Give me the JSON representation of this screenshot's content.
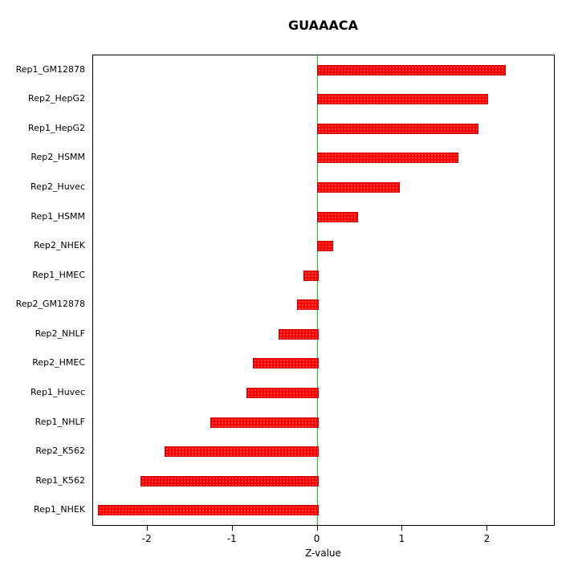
{
  "chart_data": {
    "type": "bar",
    "orientation": "horizontal",
    "title": "GUAAACA",
    "xlabel": "Z-value",
    "ylabel": "",
    "xlim": [
      -2.64,
      2.78
    ],
    "x_ticks": [
      -2,
      -1,
      0,
      1,
      2
    ],
    "grid": false,
    "legend": false,
    "bar_color": "#ff0000",
    "bar_border_color": "#cc0000",
    "zero_line_color": "#00dd00",
    "categories": [
      "Rep1_GM12878",
      "Rep2_HepG2",
      "Rep1_HepG2",
      "Rep2_HSMM",
      "Rep2_Huvec",
      "Rep1_HSMM",
      "Rep2_NHEK",
      "Rep1_HMEC",
      "Rep2_GM12878",
      "Rep2_NHLF",
      "Rep2_HMEC",
      "Rep1_Huvec",
      "Rep1_NHLF",
      "Rep2_K562",
      "Rep1_K562",
      "Rep1_NHEK"
    ],
    "values": [
      2.2,
      2.0,
      1.88,
      1.65,
      0.96,
      0.47,
      0.17,
      -0.16,
      -0.23,
      -0.45,
      -0.75,
      -0.83,
      -1.25,
      -1.79,
      -2.07,
      -2.57
    ]
  }
}
